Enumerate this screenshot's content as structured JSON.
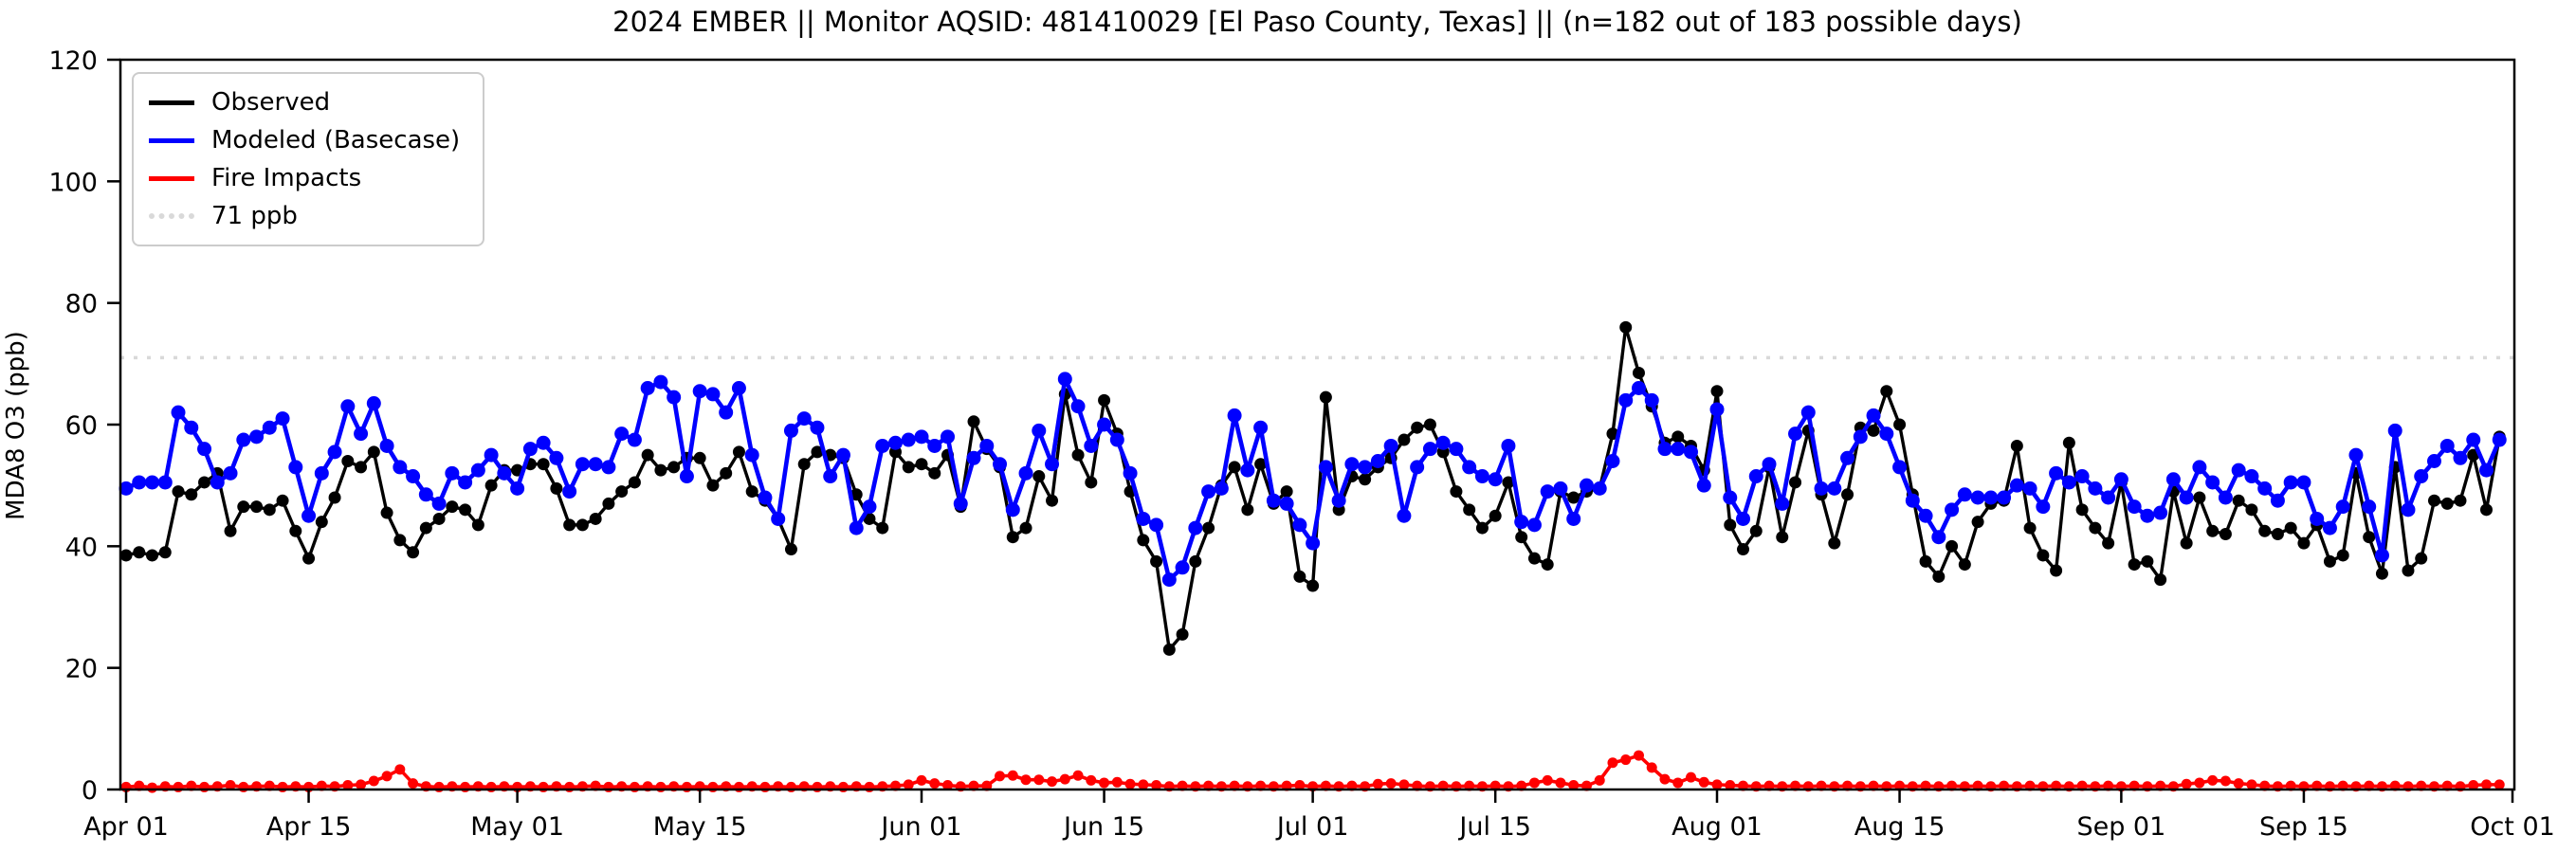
{
  "title": "2024 EMBER || Monitor AQSID: 481410029 [El Paso County, Texas] || (n=182 out of 183 possible days)",
  "ylabel": "MDA8 O3 (ppb)",
  "legend": {
    "items": [
      {
        "label": "Observed",
        "color": "#000000",
        "style": "solid"
      },
      {
        "label": "Modeled (Basecase)",
        "color": "#0000ff",
        "style": "solid"
      },
      {
        "label": "Fire Impacts",
        "color": "#ff0000",
        "style": "solid"
      },
      {
        "label": "71 ppb",
        "color": "#d9d9d9",
        "style": "dotted"
      }
    ]
  },
  "chart_data": {
    "type": "line",
    "title": "2024 EMBER || Monitor AQSID: 481410029 [El Paso County, Texas] || (n=182 out of 183 possible days)",
    "xlabel": "",
    "ylabel": "MDA8 O3 (ppb)",
    "ylim": [
      0,
      120
    ],
    "yticks": [
      0,
      20,
      40,
      60,
      80,
      100,
      120
    ],
    "xlim_days": [
      0,
      183
    ],
    "x_start_date": "Apr 01",
    "x_end_date": "Sep 30",
    "xticks": [
      {
        "label": "Apr 01",
        "day": 0
      },
      {
        "label": "Apr 15",
        "day": 14
      },
      {
        "label": "May 01",
        "day": 30
      },
      {
        "label": "May 15",
        "day": 44
      },
      {
        "label": "Jun 01",
        "day": 61
      },
      {
        "label": "Jun 15",
        "day": 75
      },
      {
        "label": "Jul 01",
        "day": 91
      },
      {
        "label": "Jul 15",
        "day": 105
      },
      {
        "label": "Aug 01",
        "day": 122
      },
      {
        "label": "Aug 15",
        "day": 136
      },
      {
        "label": "Sep 01",
        "day": 153
      },
      {
        "label": "Sep 15",
        "day": 167
      },
      {
        "label": "Oct 01",
        "day": 183
      }
    ],
    "threshold": {
      "value": 71,
      "label": "71 ppb",
      "color": "#d9d9d9"
    },
    "grid": false,
    "legend_position": "upper left",
    "series": [
      {
        "name": "Observed",
        "color": "#000000",
        "marker": "circle",
        "values": [
          38.5,
          39,
          38.5,
          39,
          49,
          48.5,
          50.5,
          52,
          42.5,
          46.5,
          46.5,
          46,
          47.5,
          42.5,
          38,
          44,
          48,
          54,
          53,
          55.5,
          45.5,
          41,
          39,
          43,
          44.5,
          46.5,
          46,
          43.5,
          50,
          52.5,
          52.5,
          53.5,
          53.5,
          49.5,
          43.5,
          43.5,
          44.5,
          47,
          49,
          50.5,
          55,
          52.5,
          53,
          54.5,
          54.5,
          50,
          52,
          55.5,
          49,
          47.5,
          44.5,
          39.5,
          53.5,
          55.5,
          55,
          54.5,
          48.5,
          44.5,
          43,
          55.5,
          53,
          53.5,
          52,
          55,
          46.5,
          60.5,
          56,
          53,
          41.5,
          43,
          51.5,
          47.5,
          65,
          55,
          50.5,
          64,
          58.5,
          49,
          41,
          37.5,
          23,
          25.5,
          37.5,
          43,
          50,
          53,
          46,
          53.5,
          47,
          49,
          35,
          33.5,
          64.5,
          46,
          51.5,
          51,
          53,
          54.5,
          57.5,
          59.5,
          60,
          55.5,
          49,
          46,
          43,
          45,
          50.5,
          41.5,
          38,
          37,
          49,
          48,
          49,
          49.5,
          58.5,
          76,
          68.5,
          63,
          57,
          58,
          56.5,
          52.5,
          65.5,
          43.5,
          39.5,
          42.5,
          53,
          41.5,
          50.5,
          59,
          48.5,
          40.5,
          48.5,
          59.5,
          59,
          65.5,
          60,
          48.5,
          37.5,
          35,
          40,
          37,
          44,
          47,
          47.5,
          56.5,
          43,
          38.5,
          36,
          57,
          46,
          43,
          40.5,
          50.5,
          37,
          37.5,
          34.5,
          49,
          40.5,
          48,
          42.5,
          42,
          47.5,
          46,
          42.5,
          42,
          43,
          40.5,
          43.5,
          37.5,
          38.5,
          52,
          41.5,
          35.5,
          53,
          36,
          38,
          47.5,
          47,
          47.5,
          55,
          46,
          58
        ]
      },
      {
        "name": "Modeled (Basecase)",
        "color": "#0000ff",
        "marker": "circle",
        "values": [
          49.5,
          50.5,
          50.5,
          50.5,
          62,
          59.5,
          56,
          50.5,
          52,
          57.5,
          58,
          59.5,
          61,
          53,
          45,
          52,
          55.5,
          63,
          58.5,
          63.5,
          56.5,
          53,
          51.5,
          48.5,
          47,
          52,
          50.5,
          52.5,
          55,
          52,
          49.5,
          56,
          57,
          54.5,
          49,
          53.5,
          53.5,
          53,
          58.5,
          57.5,
          66,
          67,
          64.5,
          51.5,
          65.5,
          65,
          62,
          66,
          55,
          48,
          44.5,
          59,
          61,
          59.5,
          51.5,
          55,
          43,
          46.5,
          56.5,
          57,
          57.5,
          58,
          56.5,
          58,
          47,
          54.5,
          56.5,
          53.5,
          46,
          52,
          59,
          53.5,
          67.5,
          63,
          56.5,
          60,
          57.5,
          52,
          44.5,
          43.5,
          34.5,
          36.5,
          43,
          49,
          49.5,
          61.5,
          52.5,
          59.5,
          47.5,
          47,
          43.5,
          40.5,
          53,
          47.5,
          53.5,
          53,
          54,
          56.5,
          45,
          53,
          56,
          57,
          56,
          53,
          51.5,
          51,
          56.5,
          44,
          43.5,
          49,
          49.5,
          44.5,
          50,
          49.5,
          54,
          64,
          66,
          64,
          56,
          56,
          55.5,
          50,
          62.5,
          48,
          44.5,
          51.5,
          53.5,
          47,
          58.5,
          62,
          49.5,
          49.5,
          54.5,
          58,
          61.5,
          58.5,
          53,
          47.5,
          45,
          41.5,
          46,
          48.5,
          48,
          48,
          48,
          50,
          49.5,
          46.5,
          52,
          50.5,
          51.5,
          49.5,
          48,
          51,
          46.5,
          45,
          45.5,
          51,
          48,
          53,
          50.5,
          48,
          52.5,
          51.5,
          49.5,
          47.5,
          50.5,
          50.5,
          44.5,
          43,
          46.5,
          55,
          46.5,
          38.5,
          59,
          46,
          51.5,
          54,
          56.5,
          54.5,
          57.5,
          52.5,
          57.5
        ]
      },
      {
        "name": "Fire Impacts",
        "color": "#ff0000",
        "marker": "circle",
        "values": [
          0.4,
          0.6,
          0.3,
          0.5,
          0.4,
          0.6,
          0.4,
          0.5,
          0.7,
          0.4,
          0.5,
          0.6,
          0.4,
          0.5,
          0.4,
          0.6,
          0.5,
          0.7,
          0.8,
          1.4,
          2.2,
          3.3,
          1.0,
          0.5,
          0.4,
          0.5,
          0.4,
          0.5,
          0.4,
          0.5,
          0.4,
          0.5,
          0.4,
          0.5,
          0.4,
          0.5,
          0.6,
          0.4,
          0.5,
          0.4,
          0.5,
          0.4,
          0.5,
          0.4,
          0.5,
          0.4,
          0.5,
          0.4,
          0.5,
          0.4,
          0.5,
          0.4,
          0.5,
          0.4,
          0.5,
          0.4,
          0.5,
          0.4,
          0.5,
          0.6,
          0.8,
          1.5,
          1.0,
          0.7,
          0.5,
          0.6,
          0.6,
          2.2,
          2.3,
          1.6,
          1.6,
          1.3,
          1.7,
          2.3,
          1.5,
          1.1,
          1.2,
          0.9,
          0.8,
          0.7,
          0.5,
          0.6,
          0.5,
          0.6,
          0.5,
          0.6,
          0.5,
          0.6,
          0.5,
          0.6,
          0.7,
          0.5,
          0.6,
          0.5,
          0.6,
          0.5,
          0.9,
          1.0,
          0.8,
          0.6,
          0.5,
          0.6,
          0.5,
          0.6,
          0.5,
          0.6,
          0.5,
          0.6,
          1.1,
          1.5,
          1.1,
          0.7,
          0.6,
          1.5,
          4.4,
          4.9,
          5.6,
          3.6,
          1.7,
          1.1,
          2.0,
          1.2,
          0.8,
          0.7,
          0.6,
          0.5,
          0.6,
          0.5,
          0.6,
          0.5,
          0.6,
          0.5,
          0.6,
          0.5,
          0.6,
          0.5,
          0.6,
          0.5,
          0.6,
          0.5,
          0.6,
          0.5,
          0.6,
          0.5,
          0.6,
          0.5,
          0.6,
          0.5,
          0.6,
          0.5,
          0.6,
          0.5,
          0.6,
          0.5,
          0.6,
          0.5,
          0.6,
          0.5,
          0.9,
          1.1,
          1.5,
          1.4,
          1.0,
          0.8,
          0.6,
          0.5,
          0.6,
          0.5,
          0.6,
          0.5,
          0.6,
          0.5,
          0.6,
          0.5,
          0.6,
          0.5,
          0.6,
          0.5,
          0.6,
          0.5,
          0.7,
          0.8,
          0.8
        ]
      }
    ]
  }
}
